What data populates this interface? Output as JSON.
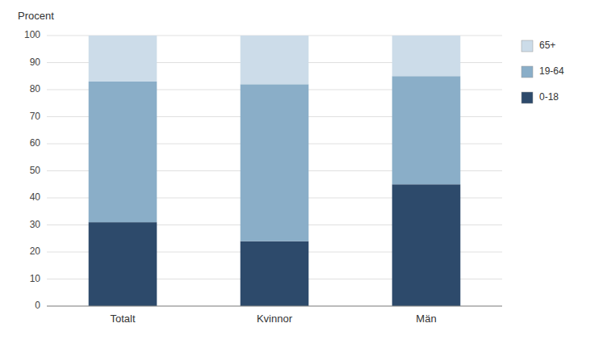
{
  "chart_data": {
    "type": "bar",
    "stacked": true,
    "ylabel": "Procent",
    "categories": [
      "Totalt",
      "Kvinnor",
      "Män"
    ],
    "series": [
      {
        "name": "0-18",
        "color": "#2d4a6b",
        "values": [
          31,
          24,
          45
        ]
      },
      {
        "name": "19-64",
        "color": "#8aaec8",
        "values": [
          52,
          58,
          40
        ]
      },
      {
        "name": "65+",
        "color": "#ccdce9",
        "values": [
          17,
          18,
          15
        ]
      }
    ],
    "ylim": [
      0,
      100
    ],
    "yticks": [
      0,
      10,
      20,
      30,
      40,
      50,
      60,
      70,
      80,
      90,
      100
    ],
    "grid": true,
    "legend": "right"
  }
}
